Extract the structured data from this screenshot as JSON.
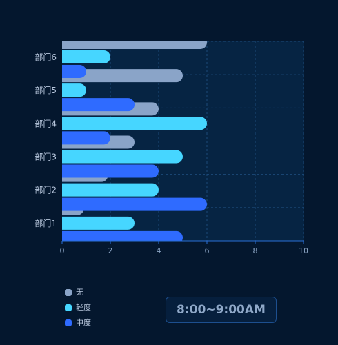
{
  "chart_data": {
    "type": "bar",
    "orientation": "horizontal",
    "categories": [
      "部门1",
      "部门2",
      "部门3",
      "部门4",
      "部门5",
      "部门6"
    ],
    "series": [
      {
        "name": "无",
        "color": "#8aa4c8",
        "values": [
          0.9,
          1.9,
          3,
          4,
          5,
          6
        ]
      },
      {
        "name": "轻度",
        "color": "#46d6ff",
        "values": [
          3,
          4,
          5,
          6,
          1,
          2
        ]
      },
      {
        "name": "中度",
        "color": "#2f6bff",
        "values": [
          5,
          6,
          4,
          2,
          3,
          1
        ]
      }
    ],
    "xlim": [
      0,
      10
    ],
    "x_ticks": [
      "0",
      "2",
      "4",
      "6",
      "8",
      "10"
    ],
    "grid": true,
    "legend_position": "bottom-left",
    "title": "",
    "xlabel": "",
    "ylabel": ""
  },
  "time_range": "8:00~9:00AM"
}
